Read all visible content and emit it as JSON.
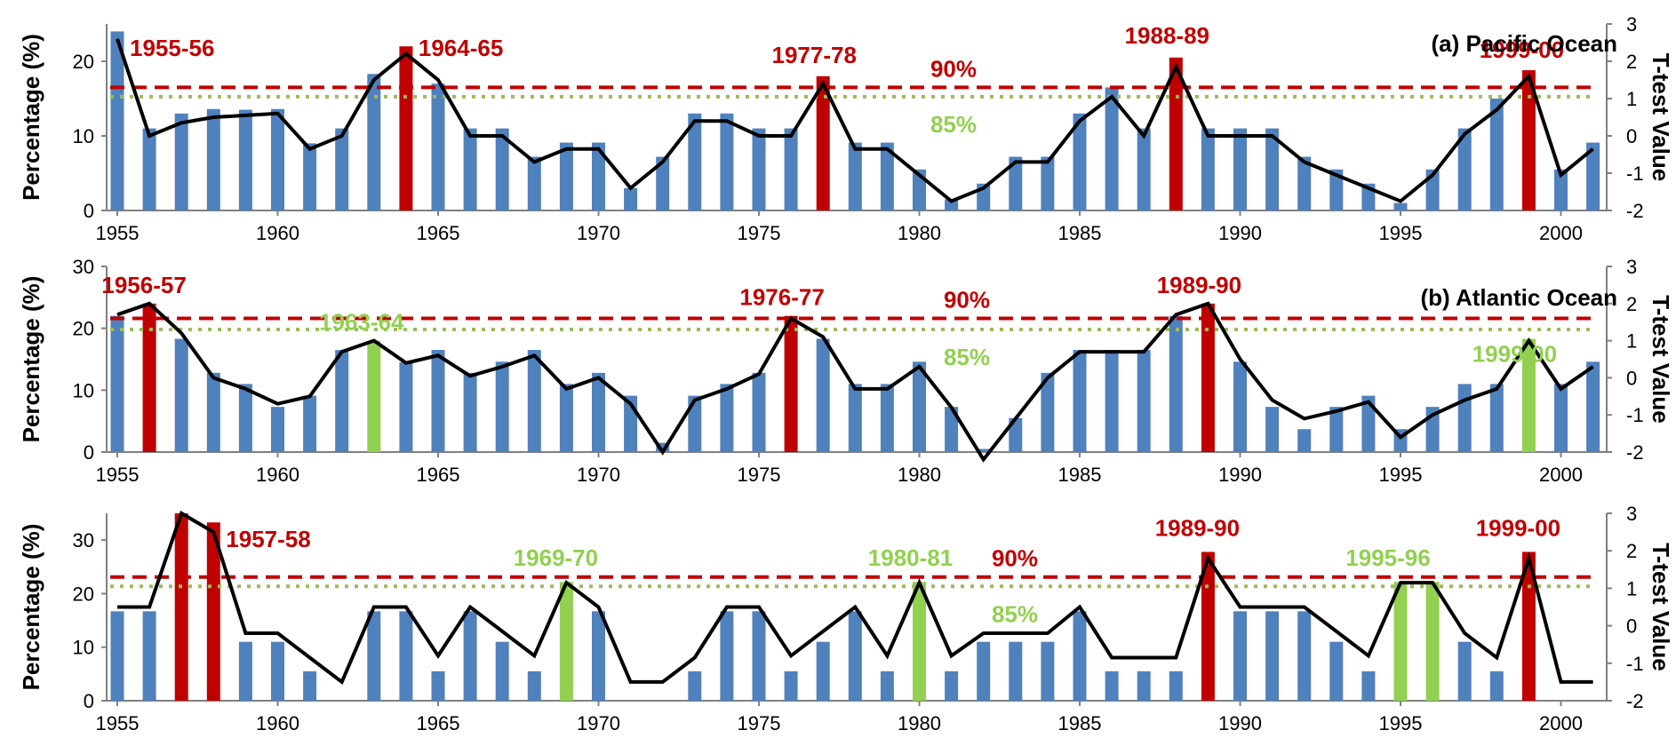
{
  "colors": {
    "bar_default": "#4f81bd",
    "bar_significant_90": "#c00000",
    "bar_significant_85": "#92d050",
    "line": "#000000",
    "threshold_90": "#c00000",
    "threshold_85": "#9bbb59",
    "axis": "#808080",
    "label_red": "#c00000",
    "label_green": "#92d050"
  },
  "chart_data": [
    {
      "type": "bar",
      "overlay": "line",
      "title": "(a) Pacific Ocean",
      "ylabel": "Percentage (%)",
      "y2label": "T-test Value",
      "x": [
        1955,
        1956,
        1957,
        1958,
        1959,
        1960,
        1961,
        1962,
        1963,
        1964,
        1965,
        1966,
        1967,
        1968,
        1969,
        1970,
        1971,
        1972,
        1973,
        1974,
        1975,
        1976,
        1977,
        1978,
        1979,
        1980,
        1981,
        1982,
        1983,
        1984,
        1985,
        1986,
        1987,
        1988,
        1989,
        1990,
        1991,
        1992,
        1993,
        1994,
        1995,
        1996,
        1997,
        1998,
        1999,
        2000,
        2001
      ],
      "xticks": [
        1955,
        1960,
        1965,
        1970,
        1975,
        1980,
        1985,
        1990,
        1995,
        2000
      ],
      "ylim": [
        0,
        25
      ],
      "yticks": [
        0,
        10,
        20
      ],
      "y2lim": [
        -2,
        3
      ],
      "y2ticks": [
        -2,
        -1,
        0,
        1,
        2,
        3
      ],
      "bar_values": [
        24,
        11,
        13,
        13.6,
        13.5,
        13.6,
        9,
        11,
        18.3,
        22,
        17,
        11,
        11,
        7.2,
        9.1,
        9.1,
        3,
        7.2,
        13,
        13,
        11,
        11,
        18,
        9.1,
        9.1,
        5.5,
        1.5,
        3.6,
        7.2,
        7.2,
        13,
        16.5,
        11,
        20.5,
        11,
        11,
        11,
        7.2,
        5.5,
        3.6,
        1,
        5.5,
        11,
        15,
        18.8,
        5.5,
        9.1
      ],
      "bar_highlight": [
        "",
        "",
        "",
        "",
        "",
        "",
        "",
        "",
        "",
        "red",
        "",
        "",
        "",
        "",
        "",
        "",
        "",
        "",
        "",
        "",
        "",
        "",
        "red",
        "",
        "",
        "",
        "",
        "",
        "",
        "",
        "",
        "",
        "",
        "red",
        "",
        "",
        "",
        "",
        "",
        "",
        "",
        "",
        "",
        "",
        "red",
        "",
        ""
      ],
      "t_values": [
        2.6,
        0,
        0.35,
        0.5,
        0.55,
        0.6,
        -0.35,
        0,
        1.5,
        2.2,
        1.5,
        0,
        0,
        -0.7,
        -0.35,
        -0.35,
        -1.4,
        -0.7,
        0.4,
        0.4,
        0,
        0,
        1.4,
        -0.35,
        -0.35,
        -1.05,
        -1.75,
        -1.4,
        -0.7,
        -0.7,
        0.4,
        1.05,
        0,
        1.85,
        0,
        0,
        0,
        -0.7,
        -1.05,
        -1.4,
        -1.75,
        -1.05,
        0.05,
        0.7,
        1.6,
        -1.05,
        -0.35
      ],
      "threshold_90": 1.3,
      "threshold_85": 1.05,
      "threshold_90_label": "90%",
      "threshold_85_label": "85%",
      "event_labels": [
        {
          "text": "1955-56",
          "year": 1955,
          "color": "red"
        },
        {
          "text": "1964-65",
          "year": 1964,
          "color": "red"
        },
        {
          "text": "1977-78",
          "year": 1977,
          "color": "red"
        },
        {
          "text": "1988-89",
          "year": 1988,
          "color": "red"
        },
        {
          "text": "1999-00",
          "year": 1999,
          "color": "red"
        }
      ]
    },
    {
      "type": "bar",
      "overlay": "line",
      "title": "(b) Atlantic Ocean",
      "ylabel": "Percentage (%)",
      "y2label": "T-test Value",
      "x": [
        1955,
        1956,
        1957,
        1958,
        1959,
        1960,
        1961,
        1962,
        1963,
        1964,
        1965,
        1966,
        1967,
        1968,
        1969,
        1970,
        1971,
        1972,
        1973,
        1974,
        1975,
        1976,
        1977,
        1978,
        1979,
        1980,
        1981,
        1982,
        1983,
        1984,
        1985,
        1986,
        1987,
        1988,
        1989,
        1990,
        1991,
        1992,
        1993,
        1994,
        1995,
        1996,
        1997,
        1998,
        1999,
        2000,
        2001
      ],
      "xticks": [
        1955,
        1960,
        1965,
        1970,
        1975,
        1980,
        1985,
        1990,
        1995,
        2000
      ],
      "ylim": [
        0,
        30
      ],
      "yticks": [
        0,
        10,
        20,
        30
      ],
      "y2lim": [
        -2,
        3
      ],
      "y2ticks": [
        -2,
        -1,
        0,
        1,
        2,
        3
      ],
      "bar_values": [
        22,
        24,
        18.3,
        12.8,
        11,
        7.3,
        9.1,
        16.5,
        18,
        14.5,
        16.5,
        12.8,
        14.6,
        16.5,
        11,
        12.8,
        9.1,
        1.5,
        9.1,
        11,
        12.8,
        22,
        18.3,
        11,
        11,
        14.6,
        7.3,
        0.5,
        5.5,
        12.8,
        16.5,
        16.5,
        16.5,
        22,
        24,
        14.6,
        7.3,
        3.7,
        7.3,
        9.1,
        3.7,
        7.3,
        11,
        11,
        18.3,
        11,
        14.6
      ],
      "bar_highlight": [
        "",
        "red",
        "",
        "",
        "",
        "",
        "",
        "",
        "green",
        "",
        "",
        "",
        "",
        "",
        "",
        "",
        "",
        "",
        "",
        "",
        "",
        "red",
        "",
        "",
        "",
        "",
        "",
        "",
        "",
        "",
        "",
        "",
        "",
        "",
        "red",
        "",
        "",
        "",
        "",
        "",
        "",
        "",
        "",
        "",
        "green",
        "",
        ""
      ],
      "t_values": [
        1.7,
        2,
        1.2,
        0,
        -0.3,
        -0.7,
        -0.5,
        0.7,
        1,
        0.4,
        0.6,
        0.05,
        0.3,
        0.6,
        -0.3,
        0,
        -0.7,
        -2,
        -0.6,
        -0.3,
        0.1,
        1.6,
        1.1,
        -0.3,
        -0.3,
        0.3,
        -0.8,
        -2.2,
        -1.1,
        0,
        0.7,
        0.7,
        0.7,
        1.7,
        2,
        0.5,
        -0.6,
        -1.1,
        -0.9,
        -0.65,
        -1.6,
        -1,
        -0.6,
        -0.3,
        1,
        -0.3,
        0.3
      ],
      "threshold_90": 1.6,
      "threshold_85": 1.3,
      "threshold_90_label": "90%",
      "threshold_85_label": "85%",
      "event_labels": [
        {
          "text": "1956-57",
          "year": 1956,
          "color": "red"
        },
        {
          "text": "1963-64",
          "year": 1963,
          "color": "green"
        },
        {
          "text": "1976-77",
          "year": 1976,
          "color": "red"
        },
        {
          "text": "1989-90",
          "year": 1989,
          "color": "red"
        },
        {
          "text": "1999-00",
          "year": 1999,
          "color": "green"
        }
      ]
    },
    {
      "type": "bar",
      "overlay": "line",
      "title": "",
      "ylabel": "Percentage (%)",
      "y2label": "T-test Value",
      "x": [
        1955,
        1956,
        1957,
        1958,
        1959,
        1960,
        1961,
        1962,
        1963,
        1964,
        1965,
        1966,
        1967,
        1968,
        1969,
        1970,
        1971,
        1972,
        1973,
        1974,
        1975,
        1976,
        1977,
        1978,
        1979,
        1980,
        1981,
        1982,
        1983,
        1984,
        1985,
        1986,
        1987,
        1988,
        1989,
        1990,
        1991,
        1992,
        1993,
        1994,
        1995,
        1996,
        1997,
        1998,
        1999,
        2000,
        2001
      ],
      "xticks": [
        1955,
        1960,
        1965,
        1970,
        1975,
        1980,
        1985,
        1990,
        1995,
        2000
      ],
      "ylim": [
        0,
        35
      ],
      "yticks": [
        0,
        10,
        20,
        30
      ],
      "y2lim": [
        -2,
        3
      ],
      "y2ticks": [
        -2,
        -1,
        0,
        1,
        2,
        3
      ],
      "bar_values": [
        16.7,
        16.7,
        35,
        33.3,
        11,
        11,
        5.5,
        0,
        16.7,
        16.7,
        5.5,
        16.7,
        11,
        5.5,
        22.2,
        16.7,
        0,
        0,
        5.5,
        16.7,
        16.7,
        5.5,
        11,
        16.7,
        5.5,
        22.2,
        5.5,
        11,
        11,
        11,
        16.7,
        5.5,
        5.5,
        5.5,
        27.8,
        16.7,
        16.7,
        16.7,
        11,
        5.5,
        22.2,
        22.2,
        11,
        5.5,
        27.8,
        0,
        0
      ],
      "bar_highlight": [
        "",
        "",
        "red",
        "red",
        "",
        "",
        "",
        "",
        "",
        "",
        "",
        "",
        "",
        "",
        "green",
        "",
        "",
        "",
        "",
        "",
        "",
        "",
        "",
        "",
        "",
        "green",
        "",
        "",
        "",
        "",
        "",
        "",
        "",
        "",
        "red",
        "",
        "",
        "",
        "",
        "",
        "green",
        "green",
        "",
        "",
        "red",
        "",
        ""
      ],
      "t_values": [
        0.5,
        0.5,
        3,
        2.5,
        -0.2,
        -0.2,
        -0.85,
        -1.5,
        0.5,
        0.5,
        -0.8,
        0.5,
        -0.15,
        -0.8,
        1.15,
        0.5,
        -1.5,
        -1.5,
        -0.85,
        0.5,
        0.5,
        -0.8,
        -0.15,
        0.5,
        -0.8,
        1.15,
        -0.8,
        -0.2,
        -0.2,
        -0.2,
        0.5,
        -0.85,
        -0.85,
        -0.85,
        1.8,
        0.5,
        0.5,
        0.5,
        -0.15,
        -0.8,
        1.15,
        1.15,
        -0.2,
        -0.85,
        1.8,
        -1.5,
        -1.5
      ],
      "threshold_90": 1.3,
      "threshold_85": 1.05,
      "threshold_90_label": "90%",
      "threshold_85_label": "85%",
      "event_labels": [
        {
          "text": "1957-58",
          "year": 1958,
          "color": "red"
        },
        {
          "text": "1969-70",
          "year": 1969,
          "color": "green"
        },
        {
          "text": "1980-81",
          "year": 1980,
          "color": "green"
        },
        {
          "text": "1989-90",
          "year": 1989,
          "color": "red"
        },
        {
          "text": "1995-96",
          "year": 1995,
          "color": "green"
        },
        {
          "text": "1999-00",
          "year": 1999,
          "color": "red"
        }
      ]
    }
  ]
}
